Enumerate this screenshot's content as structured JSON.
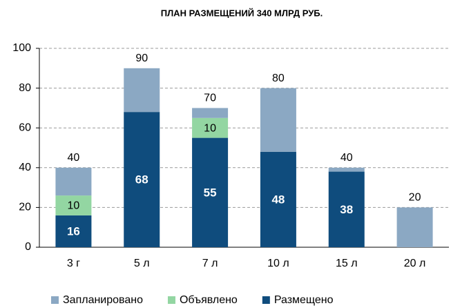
{
  "chart_data": {
    "type": "stacked_bar",
    "title": "ПЛАН РАЗМЕЩЕНИЙ 340 МЛРД РУБ.",
    "categories": [
      "3 г",
      "5 л",
      "7 л",
      "10 л",
      "15 л",
      "20 л"
    ],
    "series": [
      {
        "name": "Размещено",
        "color": "#0f4c7d",
        "values": [
          16,
          68,
          55,
          48,
          38,
          null
        ]
      },
      {
        "name": "Объявлено",
        "color": "#93d6a2",
        "values": [
          10,
          null,
          10,
          null,
          null,
          null
        ]
      },
      {
        "name": "Запланировано",
        "color": "#8ba8c3",
        "values": [
          14,
          22,
          5,
          32,
          2,
          20
        ]
      }
    ],
    "totals": [
      40,
      90,
      70,
      80,
      40,
      20
    ],
    "legend_order": [
      2,
      1,
      0
    ],
    "ylim": [
      0,
      100
    ],
    "yticks": [
      0,
      20,
      40,
      60,
      80,
      100
    ],
    "grid": true
  }
}
